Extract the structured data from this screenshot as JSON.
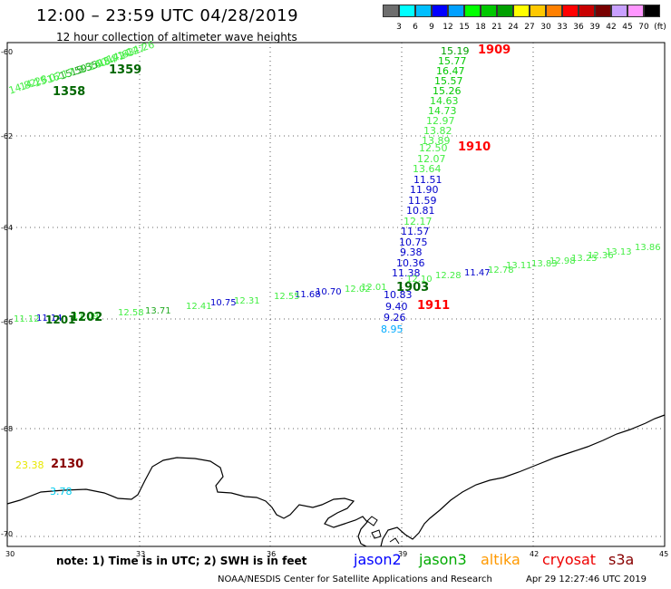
{
  "header": {
    "title": "12:00 – 23:59 UTC 04/28/2019",
    "subtitle": "12 hour collection of altimeter wave heights"
  },
  "legend": {
    "colors": [
      "#6e6e6e",
      "#00ffff",
      "#00bfff",
      "#0000ff",
      "#00a0ff",
      "#00ff00",
      "#00c800",
      "#00a000",
      "#ffff00",
      "#ffc800",
      "#ff8000",
      "#ff0000",
      "#c80000",
      "#780000",
      "#c8a0ff",
      "#ff96ff",
      "#000000"
    ],
    "ticks": [
      "3",
      "6",
      "9",
      "12",
      "15",
      "18",
      "21",
      "24",
      "27",
      "30",
      "33",
      "36",
      "39",
      "42",
      "45",
      "70",
      "(ft)"
    ]
  },
  "axes": {
    "lat_labels": [
      "-60",
      "-62",
      "-64",
      "-66",
      "-68",
      "-70"
    ],
    "lon_labels": [
      "30",
      "33",
      "36",
      "39",
      "42",
      "45"
    ]
  },
  "tracks": {
    "track_1909": {
      "time_label": "1909",
      "time_color": "#ff0000",
      "values": [
        "15.19",
        "15.77",
        "16.47",
        "15.57",
        "15.26",
        "14.63",
        "14.73",
        "12.97",
        "13.82",
        "13.89"
      ],
      "value_colors": [
        "#00a000",
        "#00c800",
        "#00c800",
        "#00c800",
        "#00c800",
        "#22dd22",
        "#22dd22",
        "#44ee44",
        "#44ee44",
        "#44ee44"
      ]
    },
    "track_1910": {
      "time_label": "1910",
      "time_color": "#ff0000",
      "values": [
        "12.50",
        "12.07",
        "13.64",
        "11.51",
        "11.90",
        "11.59",
        "10.81",
        "12.17",
        "11.57",
        "10.75",
        "9.38",
        "10.36",
        "11.38"
      ],
      "value_colors": [
        "#44ee44",
        "#44ee44",
        "#44ee44",
        "#0000cc",
        "#0000cc",
        "#0000cc",
        "#0000cc",
        "#44ee44",
        "#0000cc",
        "#0000cc",
        "#0000cc",
        "#0000cc",
        "#0000cc"
      ]
    },
    "track_1911": {
      "time_label": "1911",
      "time_color": "#ff0000",
      "values": [
        "10.83",
        "9.40",
        "9.26",
        "8.95"
      ],
      "value_colors": [
        "#0000cc",
        "#0000cc",
        "#0000cc",
        "#00aaff"
      ]
    },
    "track_1903": {
      "time_label": "1903",
      "time_color": "#006600",
      "values": [
        "11.47",
        "12.10",
        "12.28",
        "12.78",
        "13.11",
        "13.83",
        "12.98",
        "13.25",
        "12.36",
        "13.13",
        "13.86",
        "12.01",
        "12.02",
        "10.70",
        "11.68",
        "12.55",
        "12.31",
        "10.75",
        "12.41",
        "13.71",
        "12.58",
        "11.09",
        "11.14",
        "11.12"
      ],
      "value_colors": [
        "#0000cc",
        "#44ee44",
        "#44ee44",
        "#44ee44",
        "#44ee44",
        "#44ee44",
        "#44ee44",
        "#44ee44",
        "#44ee44",
        "#44ee44",
        "#44ee44",
        "#44ee44",
        "#44ee44",
        "#0000cc",
        "#0000cc",
        "#44ee44",
        "#44ee44",
        "#0000cc",
        "#44ee44",
        "#22aa22",
        "#44ee44",
        "#44ee44",
        "#0000cc",
        "#44ee44"
      ]
    },
    "track_1202": {
      "time_label": "1202",
      "time_color": "#006600"
    },
    "track_1359": {
      "time_label": "1359",
      "time_color": "#006600",
      "values": [
        "14.26",
        "14.27",
        "14.63",
        "15.72",
        "14.84",
        "15.60",
        "15.35",
        "15.59",
        "16.17",
        "15.02",
        "14.28",
        "14.82"
      ],
      "value_colors": [
        "#44ee44",
        "#44ee44",
        "#44ee44",
        "#44ee44",
        "#44ee44",
        "#44ee44",
        "#22aa22",
        "#22aa22",
        "#44ee44",
        "#44ee44",
        "#44ee44",
        "#44ee44"
      ]
    },
    "track_1358": {
      "time_label": "1358",
      "time_color": "#006600"
    },
    "track_2130": {
      "time_label": "2130",
      "time_color": "#880000",
      "values": [
        "23.38",
        "3.78"
      ],
      "value_colors": [
        "#e8e800",
        "#00ccee"
      ]
    }
  },
  "footer": {
    "note": "note: 1) Time is in UTC; 2) SWH is in feet",
    "satellites": [
      {
        "name": "jason2",
        "color": "#0000ff"
      },
      {
        "name": "jason3",
        "color": "#00aa00"
      },
      {
        "name": "altika",
        "color": "#ff9900"
      },
      {
        "name": "cryosat",
        "color": "#ee0000"
      },
      {
        "name": "s3a",
        "color": "#880000"
      }
    ],
    "credit": "NOAA/NESDIS Center for Satellite Applications and Research",
    "timestamp": "Apr 29 12:27:46 UTC 2019"
  }
}
